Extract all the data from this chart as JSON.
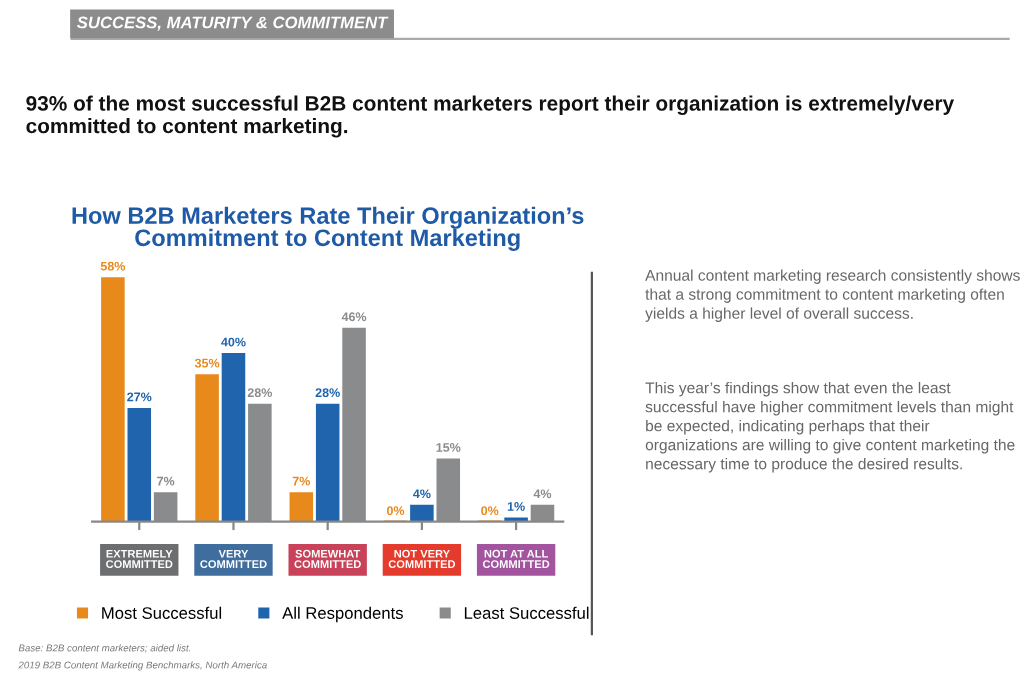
{
  "chart_data": {
    "type": "bar",
    "title": "How B2B Marketers Rate Their Organization’s\nCommitment to Content Marketing",
    "subtitle": "93% of the most successful B2B content marketers report their organization is extremely/very committed to content marketing.",
    "categories": [
      "EXTREMELY\nCOMMITTED",
      "VERY\nCOMMITTED",
      "SOMEWHAT\nCOMMITTED",
      "NOT VERY\nCOMMITTED",
      "NOT AT ALL\nCOMMITTED"
    ],
    "series": [
      {
        "name": "Most Successful",
        "color": "#e8891c",
        "values": [
          58,
          35,
          7,
          0,
          0
        ],
        "value_labels": [
          "58%",
          "35%",
          "7%",
          "0%",
          "0%"
        ]
      },
      {
        "name": "All Respondents",
        "color": "#1f64ad",
        "values": [
          27,
          40,
          28,
          4,
          1
        ],
        "value_labels": [
          "27%",
          "40%",
          "28%",
          "4%",
          "1%"
        ]
      },
      {
        "name": "Least Successful",
        "color": "#8a8b8d",
        "values": [
          7,
          28,
          46,
          15,
          4
        ],
        "value_labels": [
          "7%",
          "28%",
          "46%",
          "15%",
          "4%"
        ]
      }
    ],
    "legend": "bottom",
    "grid": false,
    "annotations": [
      "SUCCESS, MATURITY & COMMITMENT",
      "Annual content marketing research consistently shows that a strong commitment to content marketing often yields a higher level of overall success.",
      "This year’s findings show that even the least successful have higher commitment levels than might be expected, indicating perhaps that their organizations are willing to give content marketing the necessary time to produce the desired results.",
      "Base: B2B content marketers; aided list.",
      "2019 B2B Content Marketing Benchmarks, North America"
    ]
  }
}
